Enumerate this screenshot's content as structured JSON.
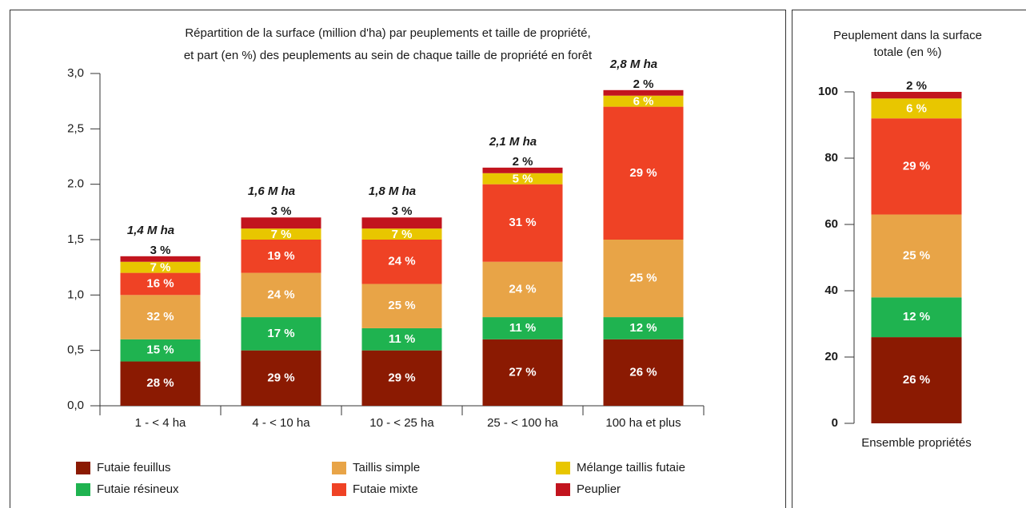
{
  "chart_data": [
    {
      "type": "stacked_bar",
      "title": [
        "Répartition de la surface (million d'ha) par peuplements et taille de propriété,",
        "et part (en %) des peuplements au sein de chaque taille de propriété en forêt"
      ],
      "categories": [
        "1 - < 4 ha",
        "4 - < 10 ha",
        "10 - < 25 ha",
        "25 - < 100 ha",
        "100 ha et plus"
      ],
      "total_labels": [
        "1,4 M ha",
        "1,6 M ha",
        "1,8 M ha",
        "2,1 M ha",
        "2,8 M ha"
      ],
      "ylim": [
        0,
        3
      ],
      "yticks": [
        {
          "value": 0,
          "label": "0,0"
        },
        {
          "value": 0.5,
          "label": "0,5"
        },
        {
          "value": 1,
          "label": "1,0"
        },
        {
          "value": 1.5,
          "label": "1,5"
        },
        {
          "value": 2,
          "label": "2.0"
        },
        {
          "value": 2.5,
          "label": "2,5"
        },
        {
          "value": 3,
          "label": "3,0"
        }
      ],
      "series": [
        {
          "name": "Futaie feuillus",
          "color": "#8b1a02",
          "values": [
            0.4,
            0.5,
            0.5,
            0.6,
            0.6
          ],
          "percent_labels": [
            "28 %",
            "29 %",
            "29 %",
            "27 %",
            "26 %"
          ]
        },
        {
          "name": "Futaie résineux",
          "color": "#1fb350",
          "values": [
            0.2,
            0.3,
            0.2,
            0.2,
            0.2
          ],
          "percent_labels": [
            "15 %",
            "17 %",
            "11 %",
            "11 %",
            "12 %"
          ]
        },
        {
          "name": "Taillis simple",
          "color": "#e8a447",
          "values": [
            0.4,
            0.4,
            0.4,
            0.5,
            0.7
          ],
          "percent_labels": [
            "32 %",
            "24 %",
            "25 %",
            "24 %",
            "25 %"
          ]
        },
        {
          "name": "Futaie mixte",
          "color": "#ef4225",
          "values": [
            0.2,
            0.3,
            0.4,
            0.7,
            1.2
          ],
          "percent_labels": [
            "16 %",
            "19 %",
            "24 %",
            "31 %",
            "29 %"
          ]
        },
        {
          "name": "Mélange taillis futaie",
          "color": "#e8c600",
          "values": [
            0.1,
            0.1,
            0.1,
            0.1,
            0.1
          ],
          "percent_labels": [
            "7 %",
            "7 %",
            "7 %",
            "5 %",
            "6 %"
          ]
        },
        {
          "name": "Peuplier",
          "color": "#c2141e",
          "values": [
            0.05,
            0.1,
            0.1,
            0.05,
            0.05
          ],
          "percent_labels": [
            "3 %",
            "3 %",
            "3 %",
            "2 %",
            "2 %"
          ]
        }
      ]
    },
    {
      "type": "stacked_bar",
      "title": [
        "Peuplement dans la surface",
        "totale (en %)"
      ],
      "categories": [
        "Ensemble propriétés"
      ],
      "ylim": [
        0,
        100
      ],
      "yticks": [
        0,
        20,
        40,
        60,
        80,
        100
      ],
      "series": [
        {
          "color": "#8b1a02",
          "values": [
            26
          ],
          "value_labels": [
            "26 %"
          ]
        },
        {
          "color": "#1fb350",
          "values": [
            12
          ],
          "value_labels": [
            "12 %"
          ]
        },
        {
          "color": "#e8a447",
          "values": [
            25
          ],
          "value_labels": [
            "25 %"
          ]
        },
        {
          "color": "#ef4225",
          "values": [
            29
          ],
          "value_labels": [
            "29 %"
          ]
        },
        {
          "color": "#e8c600",
          "values": [
            6
          ],
          "value_labels": [
            "6 %"
          ]
        },
        {
          "color": "#c2141e",
          "values": [
            2
          ],
          "value_labels": [
            "2 %"
          ]
        }
      ]
    }
  ]
}
